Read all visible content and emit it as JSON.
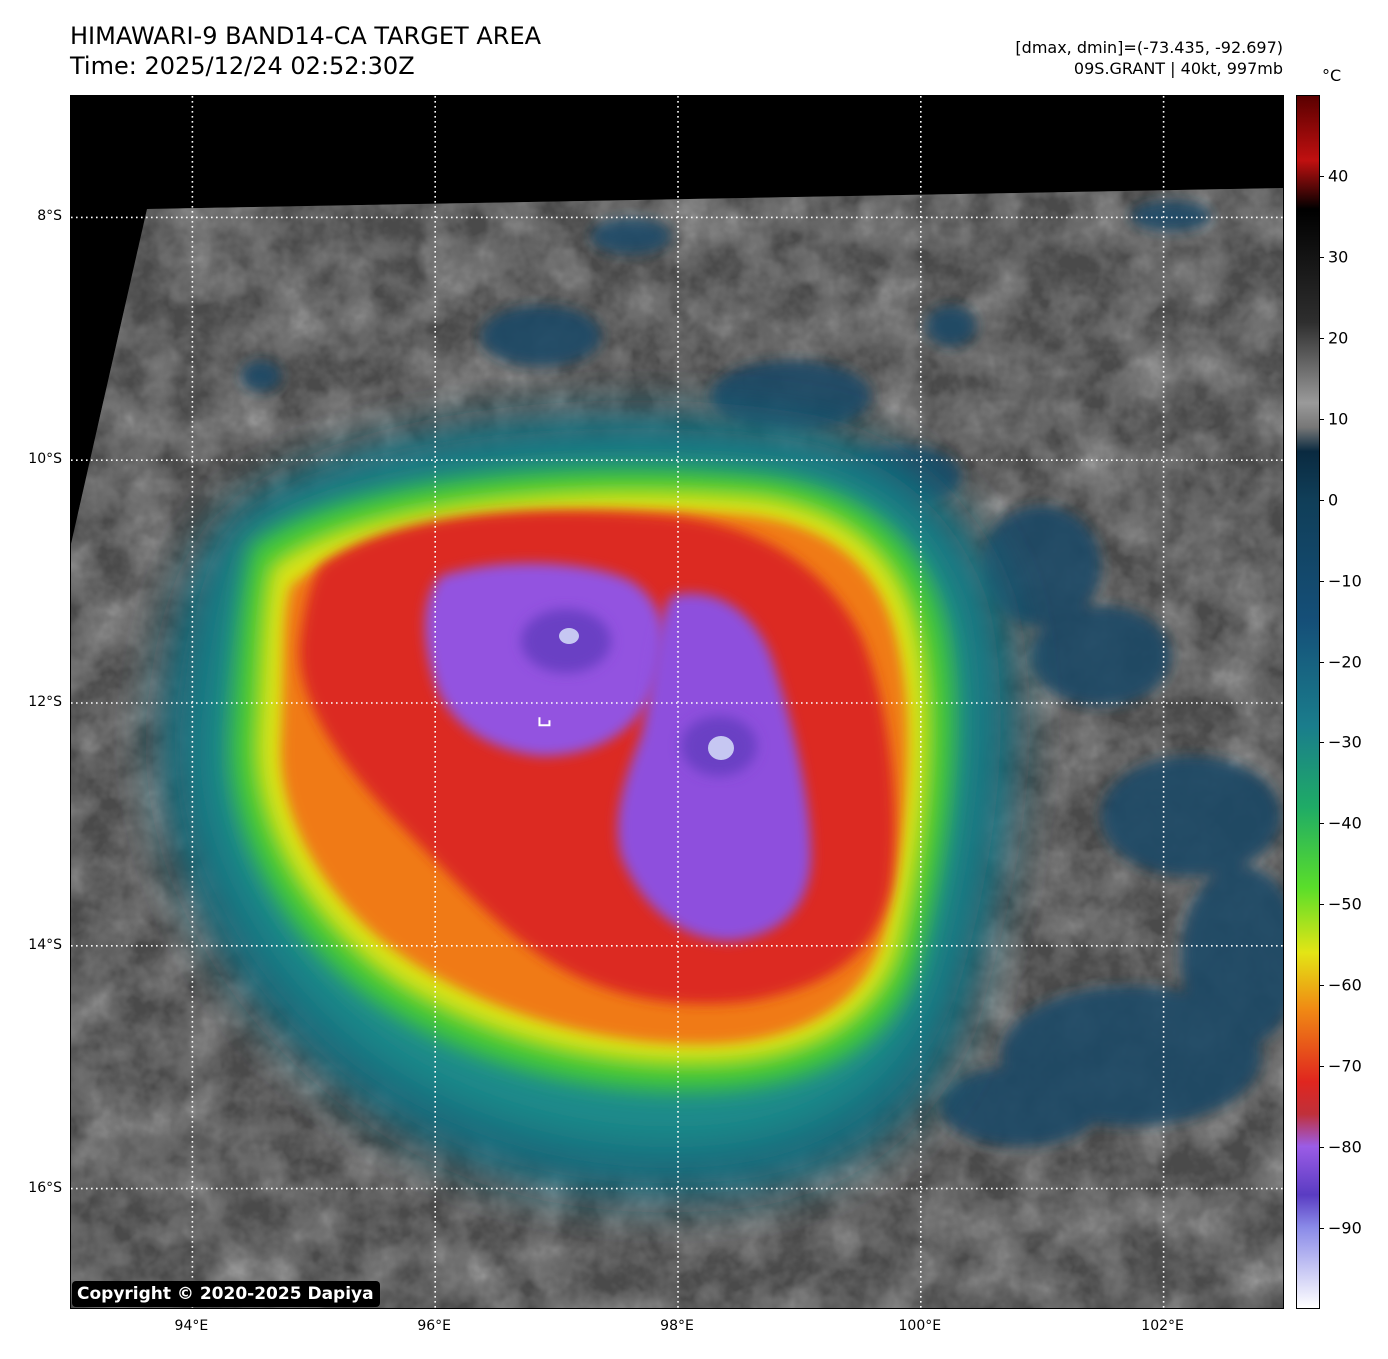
{
  "header": {
    "title_line1": "HIMAWARI-9 BAND14-CA TARGET AREA",
    "title_line2": "Time: 2025/12/24 02:52:30Z",
    "range_text": "[dmax, dmin]=(-73.435, -92.697)",
    "storm_text": "09S.GRANT | 40kt, 997mb"
  },
  "map": {
    "lon_range": [
      93.0,
      103.0
    ],
    "lat_range": [
      -17.0,
      -7.0
    ],
    "lat_ticks": [
      {
        "value": -8,
        "label": "8°S"
      },
      {
        "value": -10,
        "label": "10°S"
      },
      {
        "value": -12,
        "label": "12°S"
      },
      {
        "value": -14,
        "label": "14°S"
      },
      {
        "value": -16,
        "label": "16°S"
      }
    ],
    "lon_ticks": [
      {
        "value": 94,
        "label": "94°E"
      },
      {
        "value": 96,
        "label": "96°E"
      },
      {
        "value": 98,
        "label": "98°E"
      },
      {
        "value": 100,
        "label": "100°E"
      },
      {
        "value": 102,
        "label": "102°E"
      }
    ],
    "grid": "dotted-white",
    "storm_center_lon": 96.9,
    "storm_center_lat": -12.15
  },
  "colorbar": {
    "unit": "°C",
    "range": [
      -100,
      50
    ],
    "ticks": [
      {
        "value": 40,
        "label": "40"
      },
      {
        "value": 30,
        "label": "30"
      },
      {
        "value": 20,
        "label": "20"
      },
      {
        "value": 10,
        "label": "10"
      },
      {
        "value": 0,
        "label": "0"
      },
      {
        "value": -10,
        "label": "−10"
      },
      {
        "value": -20,
        "label": "−20"
      },
      {
        "value": -30,
        "label": "−30"
      },
      {
        "value": -40,
        "label": "−40"
      },
      {
        "value": -50,
        "label": "−50"
      },
      {
        "value": -60,
        "label": "−60"
      },
      {
        "value": -70,
        "label": "−70"
      },
      {
        "value": -80,
        "label": "−80"
      },
      {
        "value": -90,
        "label": "−90"
      }
    ]
  },
  "footer": {
    "copyright": "Copyright © 2020-2025 Dapiya"
  }
}
